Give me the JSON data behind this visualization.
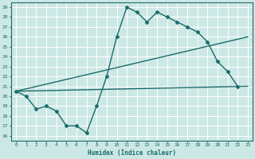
{
  "xlabel": "Humidex (Indice chaleur)",
  "xlim": [
    -0.5,
    23.5
  ],
  "ylim": [
    15.5,
    29.5
  ],
  "yticks": [
    16,
    17,
    18,
    19,
    20,
    21,
    22,
    23,
    24,
    25,
    26,
    27,
    28,
    29
  ],
  "xticks": [
    0,
    1,
    2,
    3,
    4,
    5,
    6,
    7,
    8,
    9,
    10,
    11,
    12,
    13,
    14,
    15,
    16,
    17,
    18,
    19,
    20,
    21,
    22,
    23
  ],
  "bg_color": "#cce8e5",
  "line_color": "#1a6b6b",
  "grid_color": "#ffffff",
  "series": [
    {
      "x": [
        0,
        1,
        2,
        3,
        4,
        5,
        6,
        7,
        8,
        9,
        10,
        11,
        12,
        13,
        14,
        15,
        16,
        17,
        18,
        19,
        20,
        21,
        22,
        23
      ],
      "y": [
        20.5,
        20.0,
        18.7,
        19.0,
        18.5,
        17.0,
        17.0,
        16.3,
        19.0,
        22.0,
        26.0,
        29.0,
        28.5,
        27.5,
        28.5,
        28.0,
        27.5,
        27.0,
        26.5,
        25.5,
        23.5,
        22.5,
        21.0,
        null
      ],
      "skip_between": [
        8,
        9
      ],
      "marker": "D",
      "markersize": 2.5,
      "linewidth": 1.0
    },
    {
      "x": [
        0,
        23
      ],
      "y": [
        20.5,
        26.0
      ],
      "marker": null,
      "markersize": 0,
      "linewidth": 1.0
    },
    {
      "x": [
        0,
        23
      ],
      "y": [
        20.5,
        21.0
      ],
      "marker": null,
      "markersize": 0,
      "linewidth": 1.0
    }
  ]
}
